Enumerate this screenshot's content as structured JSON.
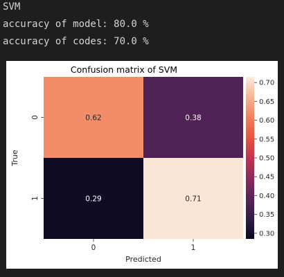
{
  "output": {
    "lines": [
      "SVM",
      "accuracy of model: 80.0 %",
      "accuracy of codes: 70.0 %"
    ]
  },
  "chart_data": {
    "type": "heatmap",
    "title": "Confusion matrix of SVM",
    "xlabel": "Predicted",
    "ylabel": "True",
    "x_categories": [
      "0",
      "1"
    ],
    "y_categories": [
      "0",
      "1"
    ],
    "values": [
      [
        0.62,
        0.38
      ],
      [
        0.29,
        0.71
      ]
    ],
    "cell_labels": [
      [
        "0.62",
        "0.38"
      ],
      [
        "0.29",
        "0.71"
      ]
    ],
    "colorbar": {
      "min": 0.285,
      "max": 0.715,
      "ticks": [
        "0.30",
        "0.35",
        "0.40",
        "0.45",
        "0.50",
        "0.55",
        "0.60",
        "0.65",
        "0.70"
      ]
    },
    "colormap": "rocket"
  }
}
